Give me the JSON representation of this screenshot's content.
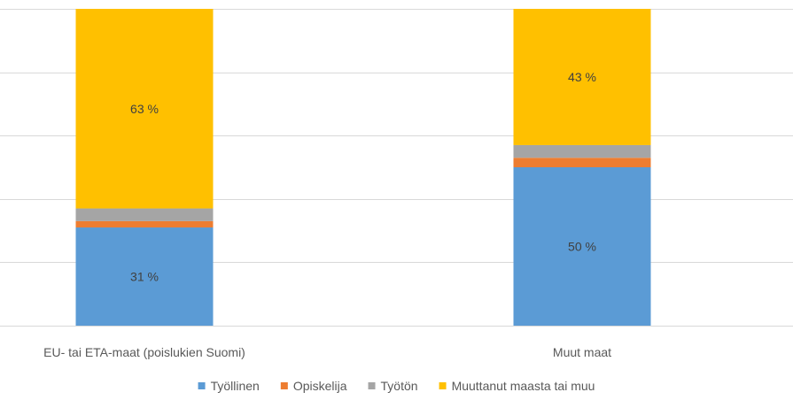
{
  "chart_data": {
    "type": "bar",
    "stacked": true,
    "categories": [
      "EU- tai ETA-maat (poislukien Suomi)",
      "Muut maat"
    ],
    "series": [
      {
        "name": "Työllinen",
        "values": [
          31,
          50
        ],
        "color": "#5b9bd5",
        "labels": [
          "31 %",
          "50 %"
        ]
      },
      {
        "name": "Opiskelija",
        "values": [
          2,
          3
        ],
        "color": "#ed7d31",
        "labels": [
          "",
          ""
        ]
      },
      {
        "name": "Työtön",
        "values": [
          4,
          4
        ],
        "color": "#a5a5a5",
        "labels": [
          "",
          ""
        ]
      },
      {
        "name": "Muuttanut maasta tai muu",
        "values": [
          63,
          43
        ],
        "color": "#ffc000",
        "labels": [
          "63 %",
          "43 %"
        ]
      }
    ],
    "ylim": [
      0,
      100
    ],
    "grid": true,
    "legend": "bottom",
    "title": "",
    "xlabel": "",
    "ylabel": ""
  }
}
